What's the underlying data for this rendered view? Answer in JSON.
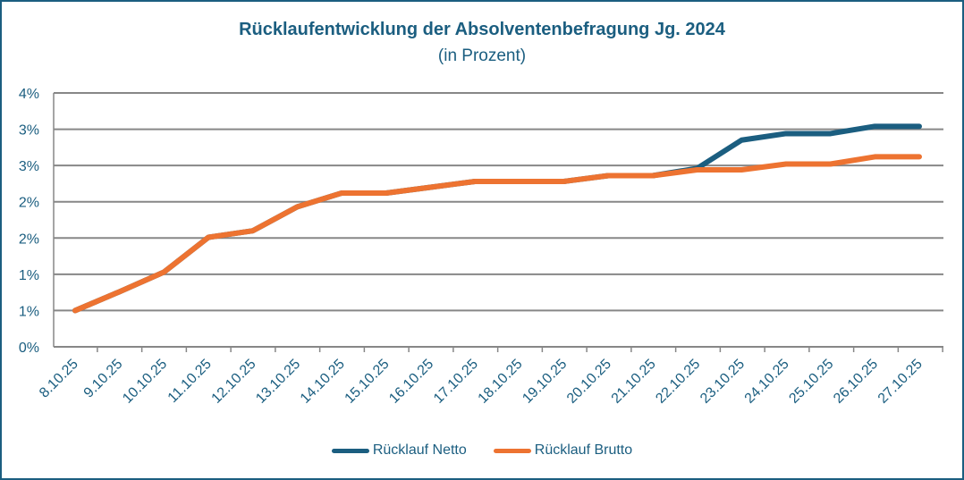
{
  "chart_data": {
    "type": "line",
    "title": "Rücklaufentwicklung der Absolventenbefragung Jg. 2024",
    "subtitle": "(in Prozent)",
    "xlabel": "",
    "ylabel": "",
    "categories": [
      "8.10.25",
      "9.10.25",
      "10.10.25",
      "11.10.25",
      "12.10.25",
      "13.10.25",
      "14.10.25",
      "15.10.25",
      "16.10.25",
      "17.10.25",
      "18.10.25",
      "19.10.25",
      "20.10.25",
      "21.10.25",
      "22.10.25",
      "23.10.25",
      "24.10.25",
      "25.10.25",
      "26.10.25",
      "27.10.25"
    ],
    "ylim": [
      0,
      3.5
    ],
    "yticks": [
      0,
      0.5,
      1,
      1.5,
      2,
      2.5,
      3,
      3.5
    ],
    "ytick_labels": [
      "0%",
      "1%",
      "1%",
      "2%",
      "2%",
      "3%",
      "3%",
      "4%"
    ],
    "grid": true,
    "legend_position": "bottom",
    "series": [
      {
        "name": "Rücklauf Netto",
        "color": "#1b5e80",
        "values": [
          0.5,
          0.76,
          1.03,
          1.51,
          1.6,
          1.93,
          2.12,
          2.12,
          2.2,
          2.28,
          2.28,
          2.28,
          2.36,
          2.36,
          2.46,
          2.85,
          2.94,
          2.94,
          3.04,
          3.04
        ]
      },
      {
        "name": "Rücklauf Brutto",
        "color": "#ed7331",
        "values": [
          0.5,
          0.76,
          1.03,
          1.51,
          1.6,
          1.93,
          2.12,
          2.12,
          2.2,
          2.28,
          2.28,
          2.28,
          2.36,
          2.36,
          2.44,
          2.44,
          2.52,
          2.52,
          2.62,
          2.62
        ]
      }
    ]
  }
}
